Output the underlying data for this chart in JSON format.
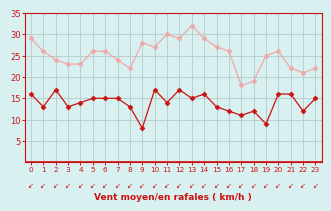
{
  "x": [
    0,
    1,
    2,
    3,
    4,
    5,
    6,
    7,
    8,
    9,
    10,
    11,
    12,
    13,
    14,
    15,
    16,
    17,
    18,
    19,
    20,
    21,
    22,
    23
  ],
  "wind_avg": [
    16,
    13,
    17,
    13,
    14,
    15,
    15,
    15,
    13,
    8,
    17,
    14,
    17,
    15,
    16,
    13,
    12,
    11,
    12,
    9,
    16,
    16,
    12,
    15
  ],
  "wind_gust": [
    29,
    26,
    24,
    23,
    23,
    26,
    26,
    24,
    22,
    28,
    27,
    30,
    29,
    32,
    29,
    27,
    26,
    18,
    19,
    25,
    26,
    22,
    21,
    22
  ],
  "bg_color": "#d8f0f0",
  "grid_color": "#b8d0d0",
  "avg_color": "#cc1111",
  "gust_color": "#f0a8a8",
  "xlabel": "Vent moyen/en rafales ( km/h )",
  "xlabel_color": "#cc1111",
  "tick_color": "#cc1111",
  "ylim": [
    0,
    35
  ],
  "yticks": [
    5,
    10,
    15,
    20,
    25,
    30,
    35
  ],
  "xlim": [
    -0.5,
    23.5
  ]
}
